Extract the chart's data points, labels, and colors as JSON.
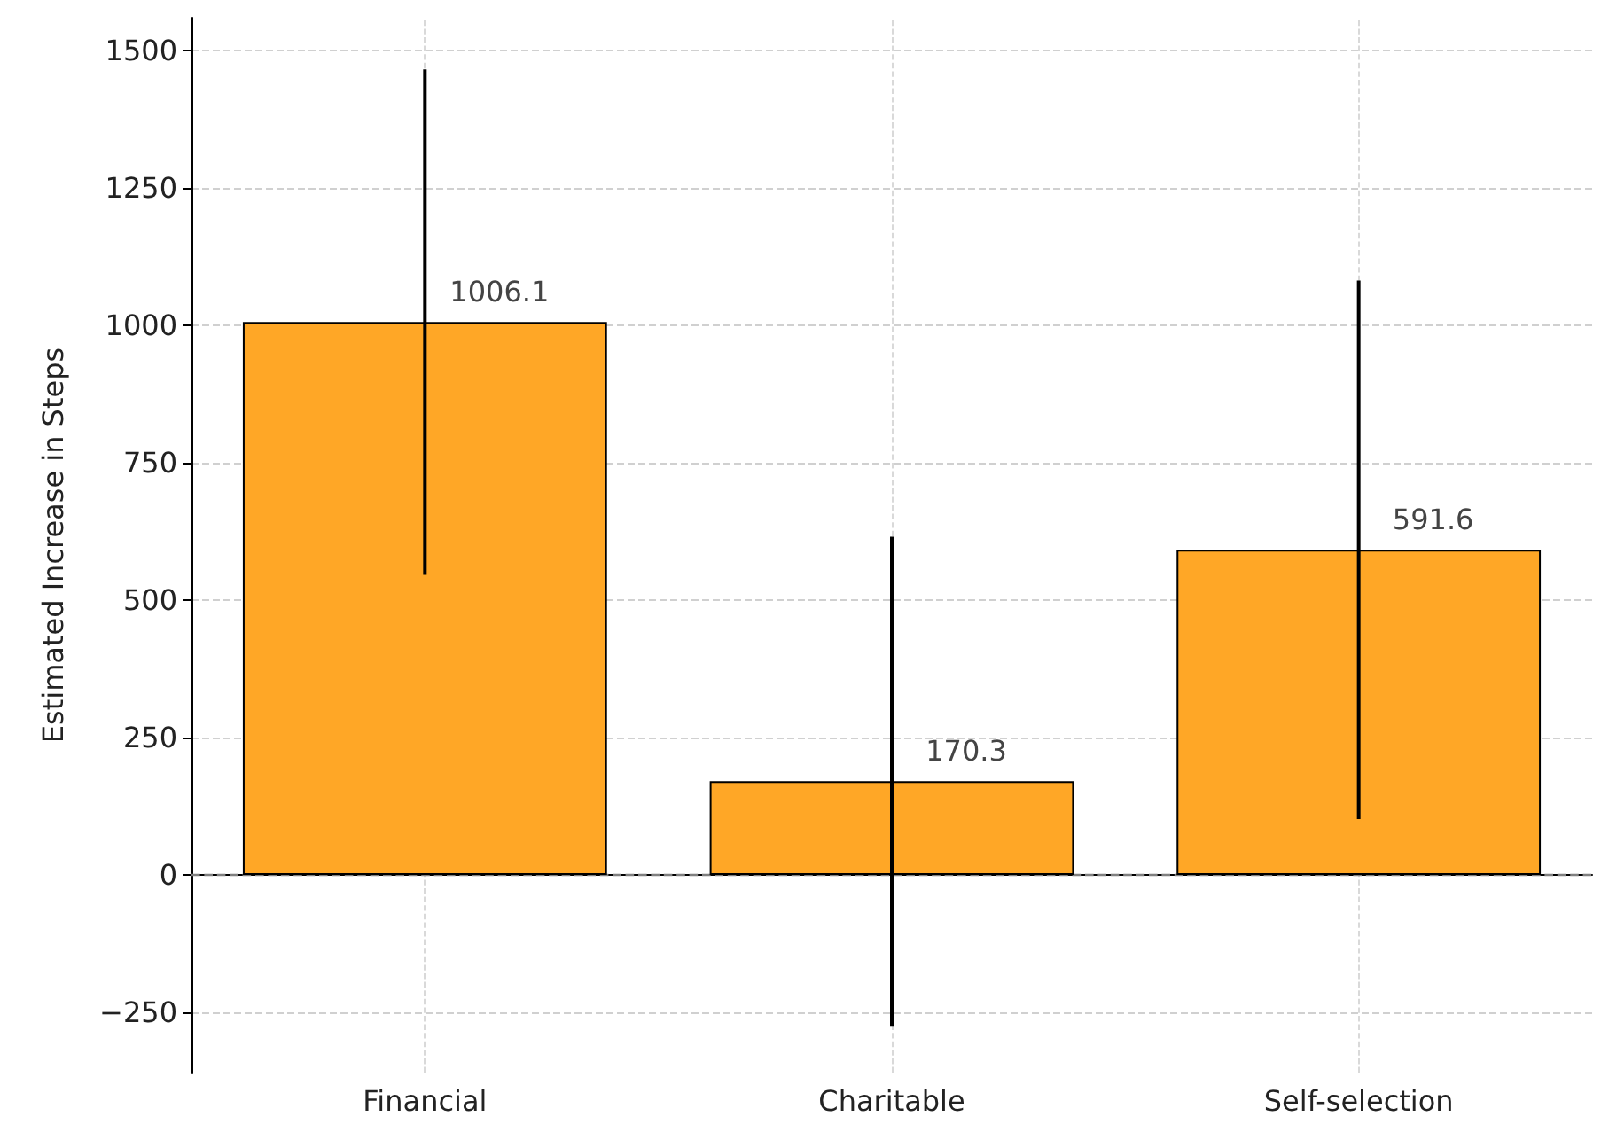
{
  "chart_data": {
    "type": "bar",
    "ylabel": "Estimated Increase in Steps",
    "categories": [
      "Financial",
      "Charitable",
      "Self-selection"
    ],
    "series": [
      {
        "color": "#ffa726",
        "values": [
          1006.1,
          170.3,
          591.6
        ],
        "errors": [
          460,
          445,
          490
        ]
      }
    ],
    "ylim": [
      -360,
      1560
    ],
    "yticks": [
      -250,
      0,
      250,
      500,
      750,
      1000,
      1250,
      1500
    ],
    "grid": true,
    "data_labels": true,
    "ref_lines": [
      {
        "axis": "y",
        "value": 0,
        "color": "#808080",
        "line_style": "dashed"
      }
    ]
  }
}
